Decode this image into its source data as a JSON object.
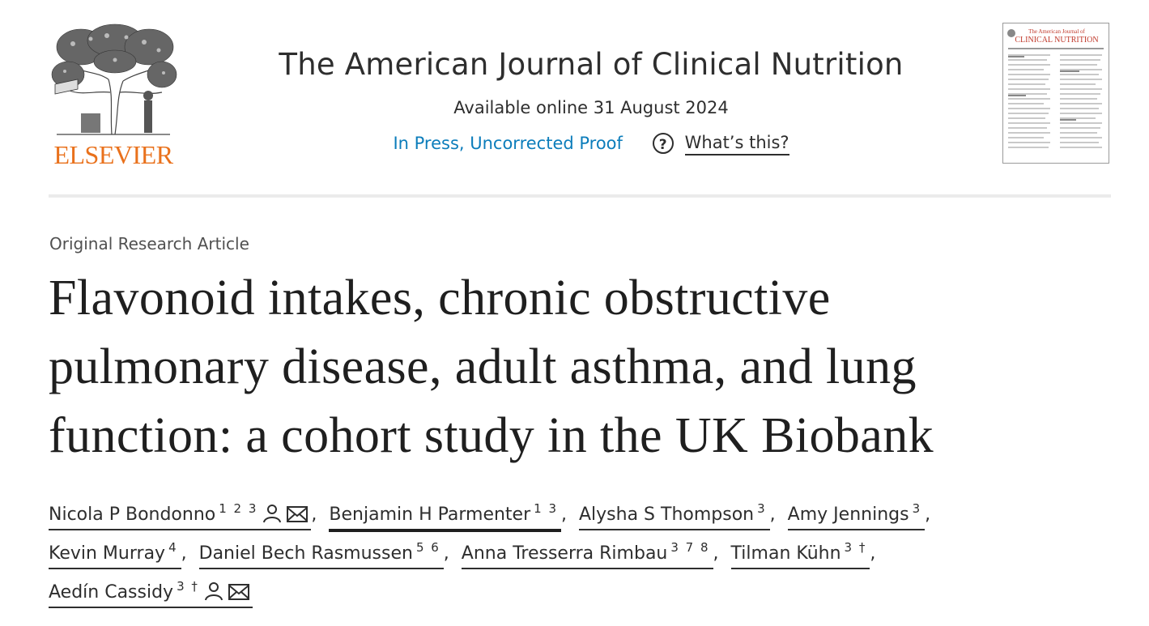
{
  "publisher": {
    "name": "ELSEVIER",
    "logo_icon": "elsevier-tree-icon",
    "brand_color": "#e9711c"
  },
  "journal": {
    "title": "The American Journal of Clinical Nutrition",
    "available": "Available online 31 August 2024",
    "status_link": "In Press, Uncorrected Proof",
    "help_label": "What’s this?",
    "help_icon": "question-circle-icon",
    "link_color": "#0c7dbb",
    "cover": {
      "icon": "journal-cover-thumbnail",
      "title_line1": "The American Journal of",
      "title_line2": "CLINICAL NUTRITION"
    }
  },
  "article": {
    "type": "Original Research Article",
    "title_lines": [
      "Flavonoid intakes, chronic obstructive",
      "pulmonary disease, adult asthma, and lung",
      "function: a cohort study in the UK Biobank"
    ]
  },
  "authors": [
    {
      "name": "Nicola P Bondonno",
      "sup": "1 2 3",
      "icons": [
        "person-icon",
        "envelope-icon"
      ]
    },
    {
      "name": "Benjamin H Parmenter",
      "sup": "1 3",
      "icons": []
    },
    {
      "name": "Alysha S Thompson",
      "sup": "3",
      "icons": []
    },
    {
      "name": "Amy Jennings",
      "sup": "3",
      "icons": []
    },
    {
      "name": "Kevin Murray",
      "sup": "4",
      "icons": []
    },
    {
      "name": "Daniel Bech Rasmussen",
      "sup": "5 6",
      "icons": []
    },
    {
      "name": "Anna Tresserra Rimbau",
      "sup": "3 7 8",
      "icons": []
    },
    {
      "name": "Tilman Kühn",
      "sup": "3 †",
      "icons": []
    },
    {
      "name": "Aedín Cassidy",
      "sup": "3 †",
      "icons": [
        "person-icon",
        "envelope-icon"
      ]
    }
  ],
  "separator": ","
}
